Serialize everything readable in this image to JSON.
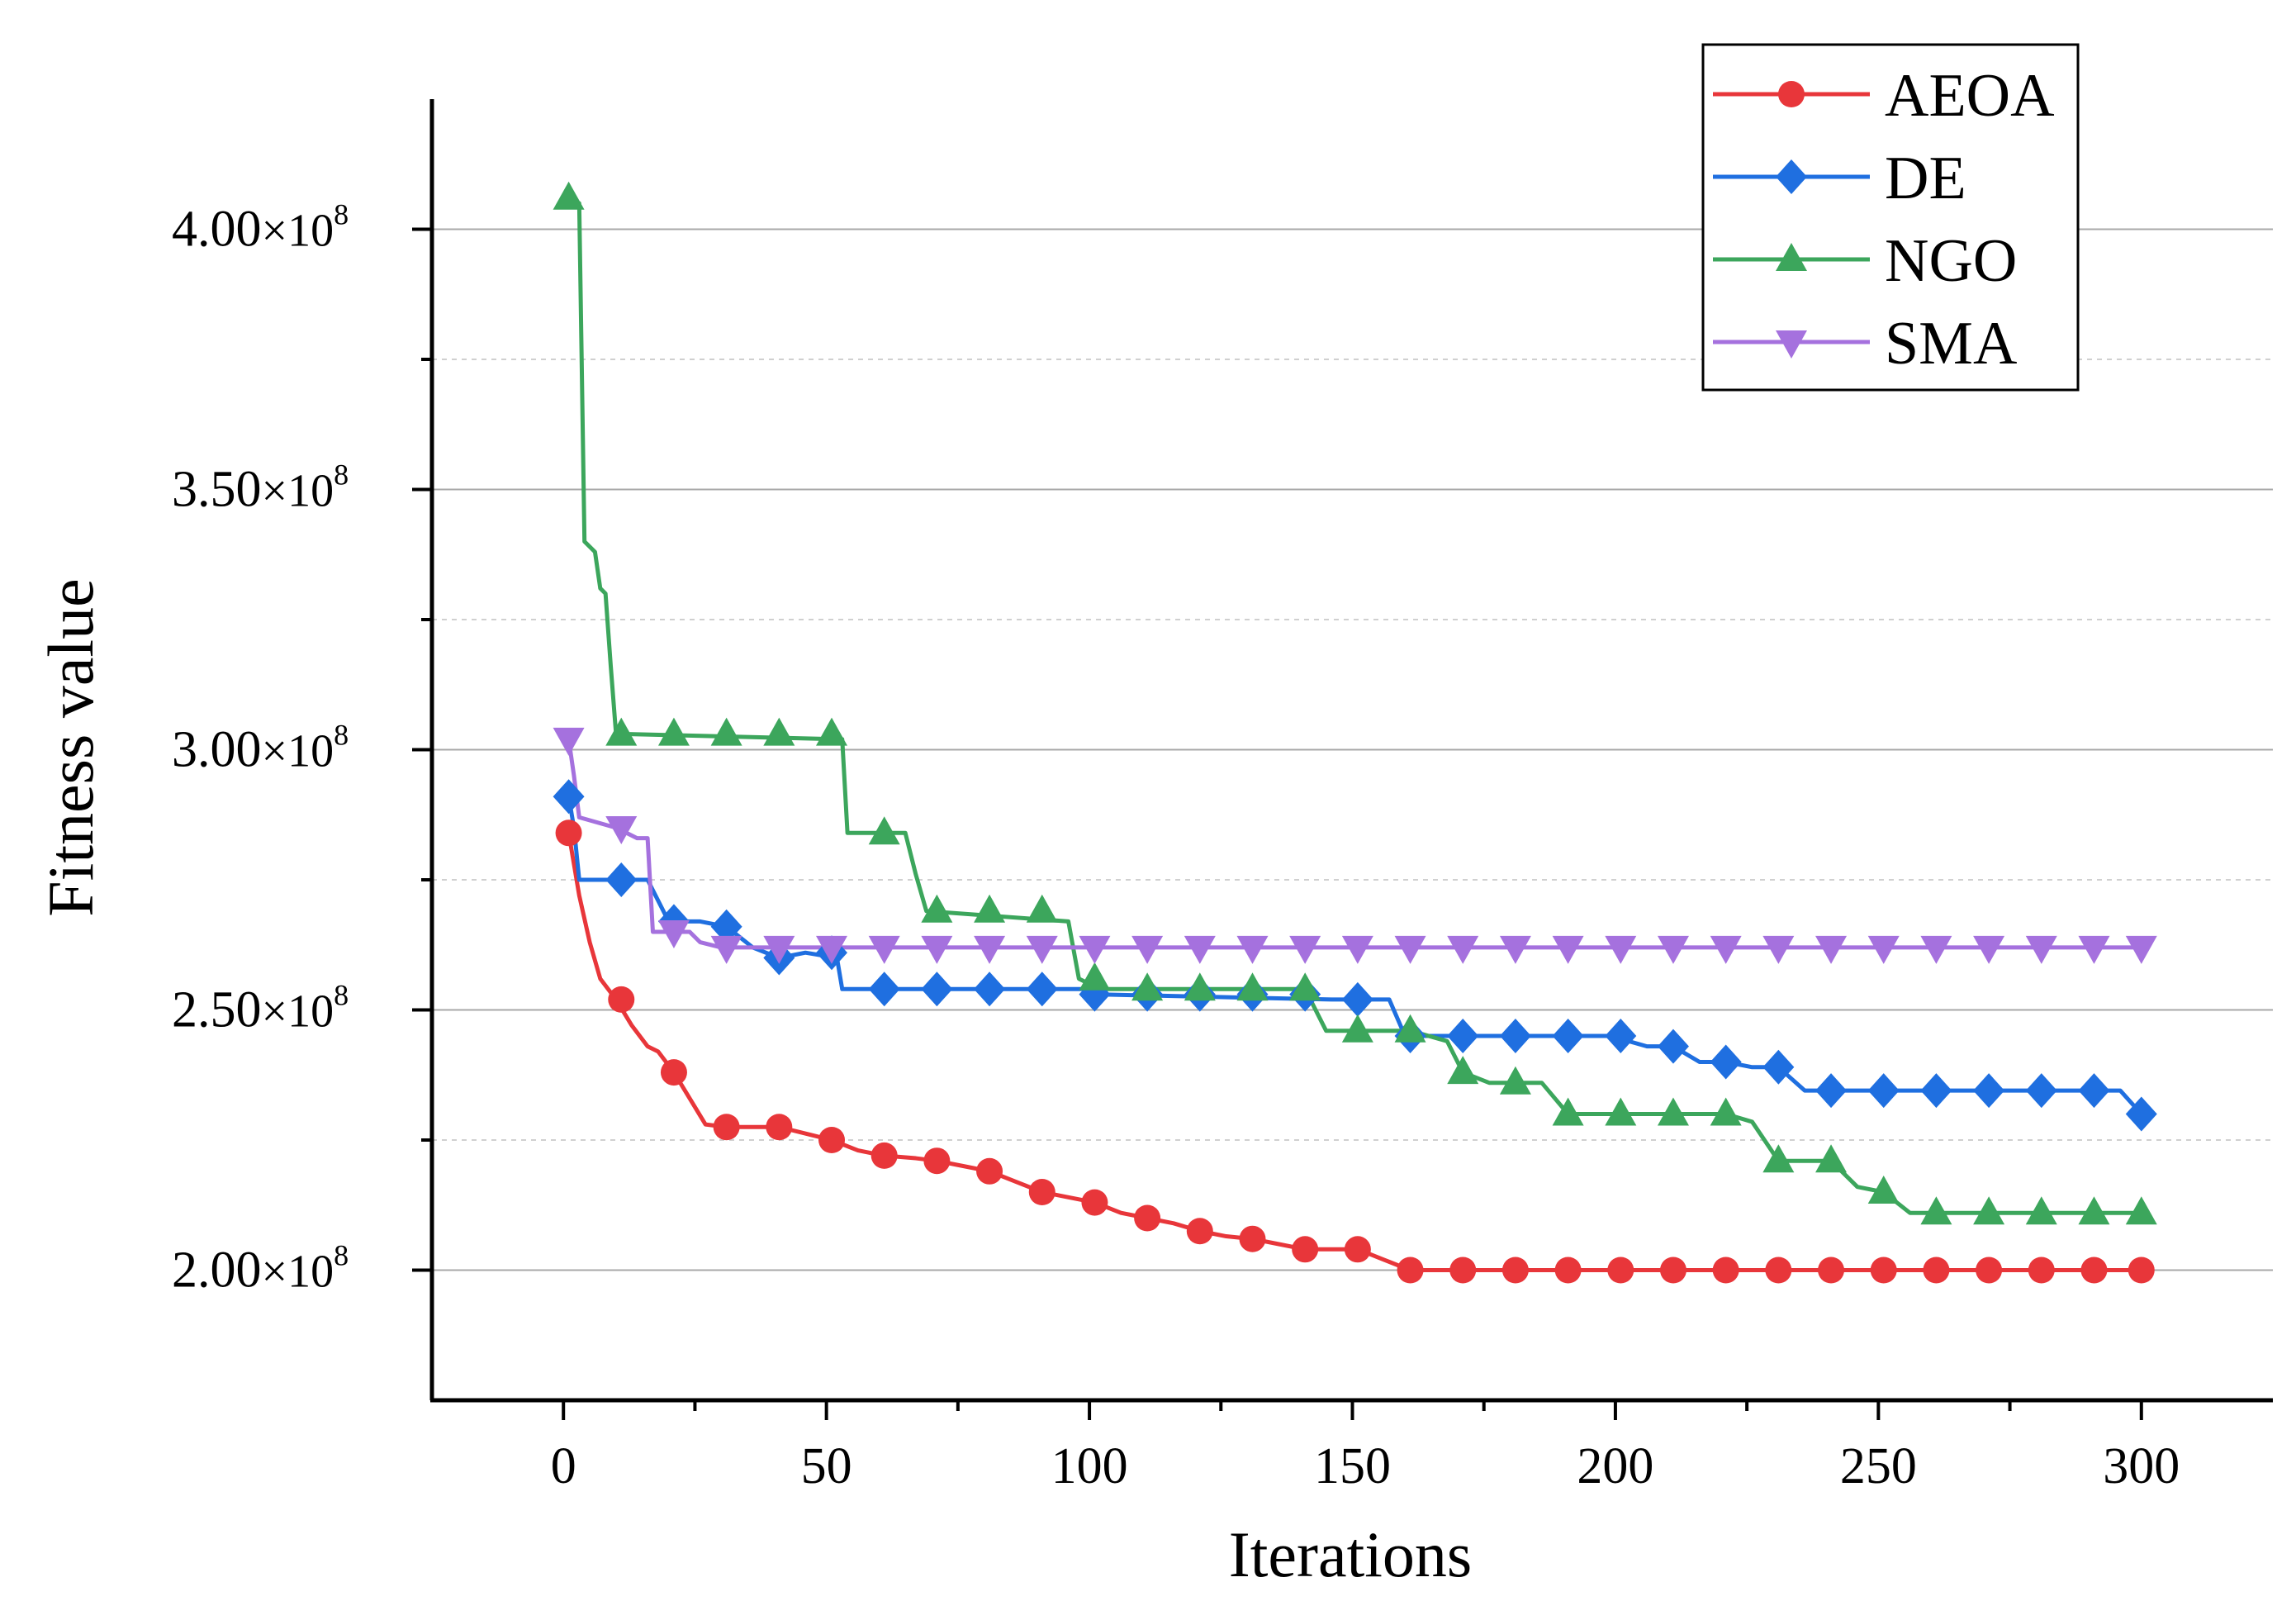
{
  "chart_data": {
    "type": "line",
    "title": "",
    "xlabel": "Iterations",
    "ylabel": "Fitness value",
    "xlim": [
      -25,
      325
    ],
    "ylim": [
      175000000,
      425000000
    ],
    "grid": true,
    "legend_position": "top-right",
    "x_ticks": [
      0,
      50,
      100,
      150,
      200,
      250,
      300
    ],
    "x_tick_labels": [
      "0",
      "50",
      "100",
      "150",
      "200",
      "250",
      "300"
    ],
    "y_ticks": [
      {
        "value": 200000000,
        "mantissa": "2.00",
        "exp_base": "×10",
        "exponent": "8"
      },
      {
        "value": 250000000,
        "mantissa": "2.50",
        "exp_base": "×10",
        "exponent": "8"
      },
      {
        "value": 300000000,
        "mantissa": "3.00",
        "exp_base": "×10",
        "exponent": "8"
      },
      {
        "value": 350000000,
        "mantissa": "3.50",
        "exp_base": "×10",
        "exponent": "8"
      },
      {
        "value": 400000000,
        "mantissa": "4.00",
        "exp_base": "×10",
        "exponent": "8"
      }
    ],
    "minor_y_ticks": [
      225000000,
      275000000,
      325000000,
      375000000
    ],
    "marker_every": 10,
    "series": [
      {
        "name": "AEOA",
        "color": "#e8363a",
        "marker": "circle",
        "x": [
          1,
          3,
          5,
          7,
          10,
          13,
          16,
          18,
          21,
          24,
          27,
          31,
          35,
          41,
          47,
          51,
          56,
          61,
          67,
          71,
          76,
          81,
          86,
          91,
          96,
          101,
          106,
          111,
          116,
          121,
          126,
          131,
          136,
          141,
          146,
          151,
          156,
          161,
          300
        ],
        "y": [
          284000000,
          272000000,
          263000000,
          256000000,
          252000000,
          247000000,
          243000000,
          242000000,
          238000000,
          233000000,
          228000000,
          227500000,
          227500000,
          227500000,
          226000000,
          225000000,
          223000000,
          222000000,
          221500000,
          221000000,
          220000000,
          219000000,
          217000000,
          215000000,
          214000000,
          213000000,
          211000000,
          210000000,
          209000000,
          207500000,
          206500000,
          206000000,
          205000000,
          204000000,
          204000000,
          204000000,
          202000000,
          200000000,
          200000000
        ]
      },
      {
        "name": "DE",
        "color": "#1f6fe0",
        "marker": "diamond",
        "x": [
          1,
          2,
          3,
          10,
          16,
          20,
          26,
          31,
          36,
          41,
          46,
          52,
          53,
          60,
          100,
          101,
          146,
          152,
          157,
          160,
          171,
          186,
          199,
          206,
          211,
          216,
          221,
          226,
          231,
          236,
          241,
          296,
          300
        ],
        "y": [
          291000000,
          285000000,
          275000000,
          275000000,
          275000000,
          267000000,
          267000000,
          266000000,
          262000000,
          260000000,
          261000000,
          260000000,
          254000000,
          254000000,
          254000000,
          253000000,
          252000000,
          252000000,
          252000000,
          245000000,
          245000000,
          245000000,
          245000000,
          243000000,
          243000000,
          240000000,
          240000000,
          239000000,
          239000000,
          234500000,
          234500000,
          234500000,
          230000000
        ]
      },
      {
        "name": "NGO",
        "color": "#3ca65c",
        "marker": "triangle-up",
        "x": [
          1,
          3,
          4,
          6,
          7,
          8,
          9,
          10,
          11,
          12,
          53,
          54,
          65,
          67,
          69,
          96,
          98,
          102,
          141,
          145,
          161,
          168,
          171,
          176,
          186,
          191,
          221,
          226,
          231,
          236,
          241,
          246,
          251,
          256,
          300
        ],
        "y": [
          406000000,
          405000000,
          340000000,
          338000000,
          331000000,
          330000000,
          316000000,
          303000000,
          303000000,
          303000000,
          302000000,
          284000000,
          284000000,
          276000000,
          269000000,
          267000000,
          256000000,
          254000000,
          254000000,
          246000000,
          246000000,
          244000000,
          238000000,
          236000000,
          236000000,
          230000000,
          230000000,
          228500000,
          221000000,
          221000000,
          221000000,
          216000000,
          215000000,
          211000000,
          211000000
        ]
      },
      {
        "name": "SMA",
        "color": "#a571de",
        "marker": "triangle-down",
        "x": [
          1,
          2,
          3,
          10,
          14,
          16,
          17,
          18,
          24,
          26,
          30,
          300
        ],
        "y": [
          302000000,
          295000000,
          287000000,
          285000000,
          283000000,
          283000000,
          265000000,
          265000000,
          265000000,
          263000000,
          262000000,
          262000000
        ]
      }
    ]
  }
}
